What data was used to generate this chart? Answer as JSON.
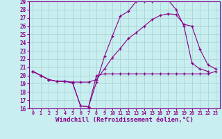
{
  "bg_color": "#c8eef0",
  "grid_color": "#b0d8da",
  "line_color": "#880088",
  "spine_color": "#880088",
  "xlim": [
    -0.5,
    23.5
  ],
  "ylim": [
    16,
    29
  ],
  "xlabel": "Windchill (Refroidissement éolien,°C)",
  "xlabel_fontsize": 6.5,
  "xticks": [
    0,
    1,
    2,
    3,
    4,
    5,
    6,
    7,
    8,
    9,
    10,
    11,
    12,
    13,
    14,
    15,
    16,
    17,
    18,
    19,
    20,
    21,
    22,
    23
  ],
  "yticks": [
    16,
    17,
    18,
    19,
    20,
    21,
    22,
    23,
    24,
    25,
    26,
    27,
    28,
    29
  ],
  "line1_x": [
    0,
    1,
    2,
    3,
    4,
    5,
    6,
    7,
    8,
    9,
    10,
    11,
    12,
    13,
    14,
    15,
    16,
    17,
    18,
    19,
    20,
    21,
    22,
    23
  ],
  "line1_y": [
    20.5,
    20.0,
    19.5,
    19.3,
    19.3,
    19.1,
    16.3,
    16.2,
    20.0,
    20.2,
    20.2,
    20.2,
    20.2,
    20.2,
    20.2,
    20.2,
    20.2,
    20.2,
    20.2,
    20.2,
    20.2,
    20.2,
    20.2,
    20.5
  ],
  "line2_x": [
    0,
    1,
    2,
    3,
    4,
    5,
    6,
    7,
    8,
    9,
    10,
    11,
    12,
    13,
    14,
    15,
    16,
    17,
    18,
    19,
    20,
    21,
    22
  ],
  "line2_y": [
    20.5,
    20.0,
    19.5,
    19.3,
    19.3,
    19.1,
    16.3,
    16.2,
    19.2,
    22.3,
    24.8,
    27.2,
    27.8,
    29.0,
    29.0,
    29.0,
    29.2,
    29.2,
    28.0,
    26.0,
    21.5,
    20.8,
    20.5
  ],
  "line3_x": [
    0,
    1,
    2,
    3,
    4,
    5,
    6,
    7,
    8,
    9,
    10,
    11,
    12,
    13,
    14,
    15,
    16,
    17,
    18,
    19,
    20,
    21,
    22,
    23
  ],
  "line3_y": [
    20.5,
    20.0,
    19.5,
    19.3,
    19.3,
    19.2,
    19.2,
    19.2,
    19.5,
    20.8,
    22.2,
    23.3,
    24.5,
    25.2,
    26.0,
    26.8,
    27.3,
    27.5,
    27.4,
    26.2,
    26.0,
    23.2,
    21.3,
    20.8
  ]
}
